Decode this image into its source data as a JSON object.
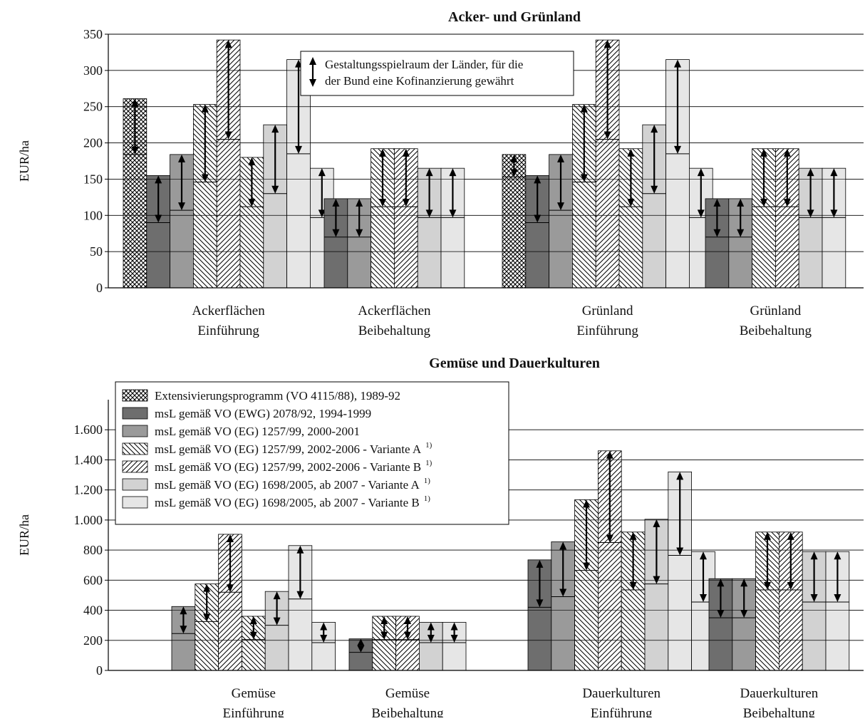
{
  "colors": {
    "s1": "#6e6e6e",
    "s2": "#9a9a9a",
    "s3": "#ffffff",
    "s4": "#ffffff",
    "s5": "#d2d2d2",
    "s6": "#e6e6e6",
    "grid": "#000000"
  },
  "legend": {
    "items": [
      {
        "label": "Extensivierungsprogramm (VO 4115/88), 1989-92",
        "sup": ""
      },
      {
        "label": "msL gemäß VO (EWG) 2078/92, 1994-1999",
        "sup": ""
      },
      {
        "label": "msL gemäß VO (EG) 1257/99, 2000-2001",
        "sup": ""
      },
      {
        "label": "msL gemäß VO (EG) 1257/99, 2002-2006 - Variante A",
        "sup": "1)"
      },
      {
        "label": "msL gemäß VO (EG) 1257/99, 2002-2006 - Variante B",
        "sup": "1)"
      },
      {
        "label": "msL gemäß VO (EG) 1698/2005, ab 2007 - Variante A",
        "sup": "1)"
      },
      {
        "label": "msL gemäß VO (EG) 1698/2005, ab 2007 - Variante B",
        "sup": "1)"
      }
    ]
  },
  "note": {
    "line1": "Gestaltungsspielraum der Länder, für die",
    "line2": "der Bund eine Kofinanzierung gewährt"
  },
  "chart_data": [
    {
      "type": "bar",
      "title": "Acker- und Grünland",
      "ylabel": "EUR/ha",
      "ylim": [
        0,
        350
      ],
      "yticks": [
        0,
        50,
        100,
        150,
        200,
        250,
        300,
        350
      ],
      "ytick_labels": [
        "0",
        "50",
        "100",
        "150",
        "200",
        "250",
        "300",
        "350"
      ],
      "grid": true,
      "categories": [
        {
          "line1": "Ackerflächen",
          "line2": "Einführung"
        },
        {
          "line1": "Ackerflächen",
          "line2": "Beibehaltung"
        },
        {
          "line1": "Grünland",
          "line2": "Einführung"
        },
        {
          "line1": "Grünland",
          "line2": "Beibehaltung"
        }
      ],
      "bars": [
        {
          "group": 0,
          "series": 0,
          "value": 261,
          "range": [
            184,
            261
          ]
        },
        {
          "group": 0,
          "series": 1,
          "value": 155,
          "range": [
            90,
            155
          ]
        },
        {
          "group": 0,
          "series": 2,
          "value": 184,
          "range": [
            107,
            184
          ]
        },
        {
          "group": 0,
          "series": 3,
          "value": 253,
          "range": [
            146,
            253
          ]
        },
        {
          "group": 0,
          "series": 4,
          "value": 342,
          "range": [
            205,
            342
          ]
        },
        {
          "group": 0,
          "series": 3,
          "value": 180,
          "range": [
            112,
            180
          ]
        },
        {
          "group": 0,
          "series": 5,
          "value": 225,
          "range": [
            130,
            225
          ]
        },
        {
          "group": 0,
          "series": 6,
          "value": 315,
          "range": [
            185,
            315
          ]
        },
        {
          "group": 0,
          "series": 6,
          "value": 165,
          "range": [
            97,
            165
          ]
        },
        {
          "group": 1,
          "series": 1,
          "value": 123,
          "range": [
            70,
            123
          ]
        },
        {
          "group": 1,
          "series": 2,
          "value": 123,
          "range": [
            70,
            123
          ]
        },
        {
          "group": 1,
          "series": 3,
          "value": 192,
          "range": [
            112,
            192
          ]
        },
        {
          "group": 1,
          "series": 4,
          "value": 192,
          "range": [
            112,
            192
          ]
        },
        {
          "group": 1,
          "series": 5,
          "value": 165,
          "range": [
            97,
            165
          ]
        },
        {
          "group": 1,
          "series": 6,
          "value": 165,
          "range": [
            97,
            165
          ]
        },
        {
          "group": 2,
          "series": 0,
          "value": 184,
          "range": [
            153,
            184
          ]
        },
        {
          "group": 2,
          "series": 1,
          "value": 155,
          "range": [
            90,
            155
          ]
        },
        {
          "group": 2,
          "series": 2,
          "value": 184,
          "range": [
            107,
            184
          ]
        },
        {
          "group": 2,
          "series": 3,
          "value": 253,
          "range": [
            146,
            253
          ]
        },
        {
          "group": 2,
          "series": 4,
          "value": 342,
          "range": [
            205,
            342
          ]
        },
        {
          "group": 2,
          "series": 3,
          "value": 192,
          "range": [
            112,
            192
          ]
        },
        {
          "group": 2,
          "series": 5,
          "value": 225,
          "range": [
            130,
            225
          ]
        },
        {
          "group": 2,
          "series": 6,
          "value": 315,
          "range": [
            185,
            315
          ]
        },
        {
          "group": 2,
          "series": 6,
          "value": 165,
          "range": [
            97,
            165
          ]
        },
        {
          "group": 3,
          "series": 1,
          "value": 123,
          "range": [
            70,
            123
          ]
        },
        {
          "group": 3,
          "series": 2,
          "value": 123,
          "range": [
            70,
            123
          ]
        },
        {
          "group": 3,
          "series": 3,
          "value": 192,
          "range": [
            112,
            192
          ]
        },
        {
          "group": 3,
          "series": 4,
          "value": 192,
          "range": [
            112,
            192
          ]
        },
        {
          "group": 3,
          "series": 5,
          "value": 165,
          "range": [
            97,
            165
          ]
        },
        {
          "group": 3,
          "series": 6,
          "value": 165,
          "range": [
            97,
            165
          ]
        }
      ]
    },
    {
      "type": "bar",
      "title": "Gemüse und Dauerkulturen",
      "ylabel": "EUR/ha",
      "ylim": [
        0,
        1800
      ],
      "yticks": [
        0,
        200,
        400,
        600,
        800,
        1000,
        1200,
        1400,
        1600
      ],
      "ytick_labels": [
        "0",
        "200",
        "400",
        "600",
        "800",
        "1.000",
        "1.200",
        "1.400",
        "1.600"
      ],
      "grid": true,
      "categories": [
        {
          "line1": "Gemüse",
          "line2": "Einführung"
        },
        {
          "line1": "Gemüse",
          "line2": "Beibehaltung"
        },
        {
          "line1": "Dauerkulturen",
          "line2": "Einführung"
        },
        {
          "line1": "Dauerkulturen",
          "line2": "Beibehaltung"
        }
      ],
      "bars": [
        {
          "group": 0,
          "series": 2,
          "value": 425,
          "range": [
            245,
            425
          ]
        },
        {
          "group": 0,
          "series": 3,
          "value": 575,
          "range": [
            325,
            575
          ]
        },
        {
          "group": 0,
          "series": 4,
          "value": 905,
          "range": [
            520,
            905
          ]
        },
        {
          "group": 0,
          "series": 3,
          "value": 360,
          "range": [
            205,
            360
          ]
        },
        {
          "group": 0,
          "series": 5,
          "value": 525,
          "range": [
            300,
            525
          ]
        },
        {
          "group": 0,
          "series": 6,
          "value": 830,
          "range": [
            475,
            830
          ]
        },
        {
          "group": 0,
          "series": 6,
          "value": 320,
          "range": [
            185,
            320
          ]
        },
        {
          "group": 1,
          "series": 1,
          "value": 210,
          "range": [
            120,
            210
          ]
        },
        {
          "group": 1,
          "series": 3,
          "value": 360,
          "range": [
            205,
            360
          ]
        },
        {
          "group": 1,
          "series": 4,
          "value": 360,
          "range": [
            205,
            360
          ]
        },
        {
          "group": 1,
          "series": 5,
          "value": 320,
          "range": [
            185,
            320
          ]
        },
        {
          "group": 1,
          "series": 6,
          "value": 320,
          "range": [
            185,
            320
          ]
        },
        {
          "group": 2,
          "series": 1,
          "value": 735,
          "range": [
            420,
            735
          ]
        },
        {
          "group": 2,
          "series": 2,
          "value": 855,
          "range": [
            490,
            855
          ]
        },
        {
          "group": 2,
          "series": 3,
          "value": 1135,
          "range": [
            665,
            1135
          ]
        },
        {
          "group": 2,
          "series": 4,
          "value": 1460,
          "range": [
            850,
            1460
          ]
        },
        {
          "group": 2,
          "series": 3,
          "value": 920,
          "range": [
            535,
            920
          ]
        },
        {
          "group": 2,
          "series": 5,
          "value": 1005,
          "range": [
            575,
            1005
          ]
        },
        {
          "group": 2,
          "series": 6,
          "value": 1320,
          "range": [
            765,
            1320
          ]
        },
        {
          "group": 2,
          "series": 6,
          "value": 790,
          "range": [
            455,
            790
          ]
        },
        {
          "group": 3,
          "series": 1,
          "value": 610,
          "range": [
            350,
            610
          ]
        },
        {
          "group": 3,
          "series": 2,
          "value": 610,
          "range": [
            350,
            610
          ]
        },
        {
          "group": 3,
          "series": 3,
          "value": 920,
          "range": [
            535,
            920
          ]
        },
        {
          "group": 3,
          "series": 4,
          "value": 920,
          "range": [
            535,
            920
          ]
        },
        {
          "group": 3,
          "series": 5,
          "value": 790,
          "range": [
            455,
            790
          ]
        },
        {
          "group": 3,
          "series": 6,
          "value": 790,
          "range": [
            455,
            790
          ]
        }
      ]
    }
  ]
}
